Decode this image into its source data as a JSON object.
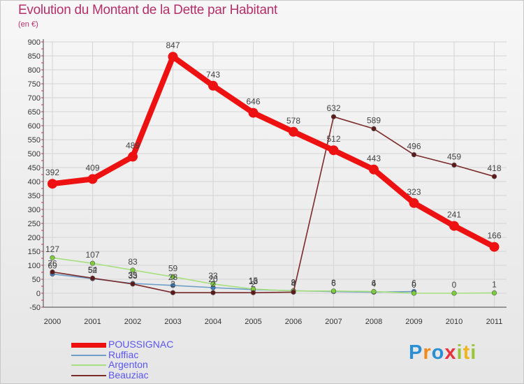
{
  "title": "Evolution du Montant de la Dette par Habitant",
  "subtitle": "(en €)",
  "logo": {
    "letters": [
      "P",
      "r",
      "o",
      "x",
      "i",
      "t",
      "i"
    ],
    "colors": [
      "#2b8fd6",
      "#f08a1c",
      "#2b8fd6",
      "#e8323c",
      "#9ac43a",
      "#f0b41c",
      "#9ac43a"
    ]
  },
  "chart_data": {
    "type": "line",
    "title": "Evolution du Montant de la Dette par Habitant",
    "ylabel": "(en €)",
    "xlabel": "",
    "categories": [
      "2000",
      "2001",
      "2002",
      "2003",
      "2004",
      "2005",
      "2006",
      "2007",
      "2008",
      "2009",
      "2010",
      "2011"
    ],
    "ylim": [
      -50,
      900
    ],
    "yticks": [
      -50,
      0,
      50,
      100,
      150,
      200,
      250,
      300,
      350,
      400,
      450,
      500,
      550,
      600,
      650,
      700,
      750,
      800,
      850,
      900
    ],
    "grid": true,
    "legend_position": "bottom-left",
    "series": [
      {
        "name": "POUSSIGNAC",
        "color": "#ee1111",
        "marker": "#ee1111",
        "values": [
          392,
          409,
          489,
          847,
          743,
          646,
          578,
          512,
          443,
          323,
          241,
          166
        ]
      },
      {
        "name": "Ruffiac",
        "color": "#6c9ec8",
        "marker": "#3b7fc2",
        "values": [
          69,
          52,
          35,
          28,
          20,
          13,
          9,
          6,
          4,
          6,
          null,
          null
        ]
      },
      {
        "name": "Argenton",
        "color": "#a6e07c",
        "marker": "#7ccf3a",
        "values": [
          127,
          107,
          83,
          59,
          33,
          15,
          8,
          8,
          6,
          0,
          0,
          1
        ]
      },
      {
        "name": "Beauziac",
        "color": "#7b2a2a",
        "marker": "#5e1a1a",
        "values": [
          76,
          54,
          33,
          2,
          2,
          2,
          4,
          632,
          589,
          496,
          459,
          418
        ]
      }
    ]
  }
}
